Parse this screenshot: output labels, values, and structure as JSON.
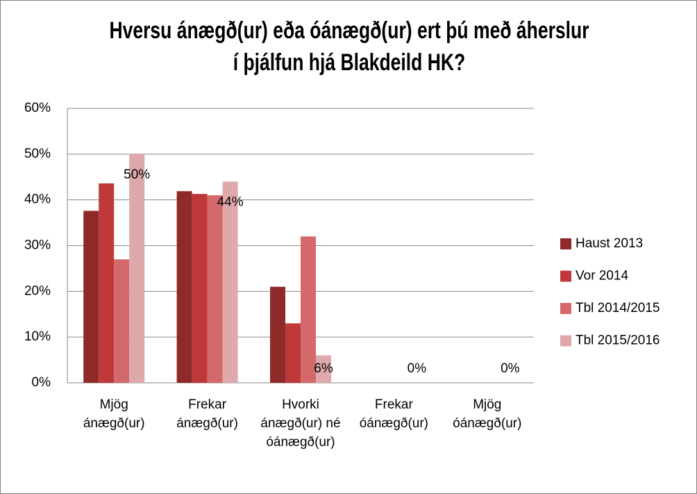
{
  "chart_data": {
    "type": "bar",
    "title": "Hversu ánægð(ur) eða óánægð(ur) ert þú með áherslur í þjálfun hjá Blakdeild HK?",
    "categories": [
      "Mjög ánægð(ur)",
      "Frekar ánægð(ur)",
      "Hvorki ánægð(ur) né óánægð(ur)",
      "Frekar óánægð(ur)",
      "Mjög óánægð(ur)"
    ],
    "series": [
      {
        "name": "Haust 2013",
        "color": "#8e2a2a",
        "values": [
          37.6,
          41.9,
          21,
          0,
          0
        ]
      },
      {
        "name": "Vor 2014",
        "color": "#c0393a",
        "values": [
          43.6,
          41.3,
          13,
          0,
          0
        ]
      },
      {
        "name": "Tbl 2014/2015",
        "color": "#d4696b",
        "values": [
          27,
          41,
          32,
          0,
          0
        ]
      },
      {
        "name": "Tbl 2015/2016",
        "color": "#dfa8aa",
        "values": [
          50,
          44,
          6,
          0,
          0
        ],
        "value_labels": [
          "50%",
          "44%",
          "6%",
          "0%",
          "0%"
        ]
      }
    ],
    "ylim": [
      0,
      60
    ],
    "yticks": [
      {
        "value": 0,
        "label": "0%"
      },
      {
        "value": 10,
        "label": "10%"
      },
      {
        "value": 20,
        "label": "20%"
      },
      {
        "value": 30,
        "label": "30%"
      },
      {
        "value": 40,
        "label": "40%"
      },
      {
        "value": 50,
        "label": "50%"
      },
      {
        "value": 60,
        "label": "60%"
      }
    ],
    "grid": true,
    "legend": "right"
  }
}
